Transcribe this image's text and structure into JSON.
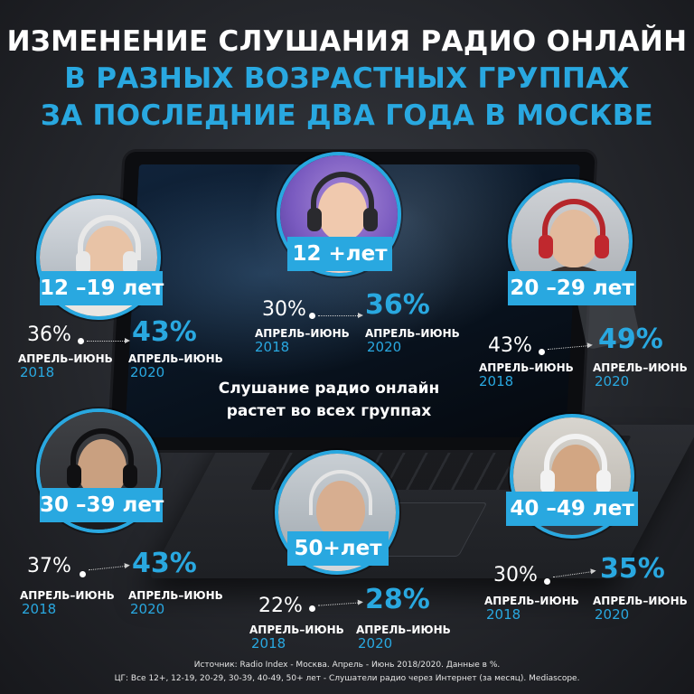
{
  "title": {
    "line1": "ИЗМЕНЕНИЕ СЛУШАНИЯ РАДИО ОНЛАЙН",
    "line2": "В РАЗНЫХ ВОЗРАСТНЫХ ГРУППАХ",
    "line3": "ЗА ПОСЛЕДНИЕ ДВА ГОДА В МОСКВЕ"
  },
  "colors": {
    "accent": "#29a8e0",
    "text": "#ffffff",
    "background": "#25272c"
  },
  "groups": [
    {
      "label": "12 –19 лет",
      "value_2018": "36%",
      "value_2020": "43%",
      "period_2018": "АПРЕЛЬ–ИЮНЬ",
      "year_2018": "2018",
      "period_2020": "АПРЕЛЬ–ИЮНЬ",
      "year_2020": "2020"
    },
    {
      "label": "12 +лет",
      "value_2018": "30%",
      "value_2020": "36%",
      "period_2018": "АПРЕЛЬ–ИЮНЬ",
      "year_2018": "2018",
      "period_2020": "АПРЕЛЬ–ИЮНЬ",
      "year_2020": "2020"
    },
    {
      "label": "20 –29 лет",
      "value_2018": "43%",
      "value_2020": "49%",
      "period_2018": "АПРЕЛЬ–ИЮНЬ",
      "year_2018": "2018",
      "period_2020": "АПРЕЛЬ–ИЮНЬ",
      "year_2020": "2020"
    },
    {
      "label": "30 –39 лет",
      "value_2018": "37%",
      "value_2020": "43%",
      "period_2018": "АПРЕЛЬ–ИЮНЬ",
      "year_2018": "2018",
      "period_2020": "АПРЕЛЬ–ИЮНЬ",
      "year_2020": "2020"
    },
    {
      "label": "50+лет",
      "value_2018": "22%",
      "value_2020": "28%",
      "period_2018": "АПРЕЛЬ–ИЮНЬ",
      "year_2018": "2018",
      "period_2020": "АПРЕЛЬ–ИЮНЬ",
      "year_2020": "2020"
    },
    {
      "label": "40 –49 лет",
      "value_2018": "30%",
      "value_2020": "35%",
      "period_2018": "АПРЕЛЬ–ИЮНЬ",
      "year_2018": "2018",
      "period_2020": "АПРЕЛЬ–ИЮНЬ",
      "year_2020": "2020"
    }
  ],
  "center": {
    "line1": "Слушание радио онлайн",
    "line2": "растет во всех группах"
  },
  "footer": {
    "line1": "Источник: Radio Index - Москва. Апрель - Июнь 2018/2020. Данные в %.",
    "line2": "ЦГ: Все 12+, 12-19, 20-29, 30-39,  40-49, 50+ лет - Слушатели радио через Интернет (за месяц). Mediascope."
  }
}
